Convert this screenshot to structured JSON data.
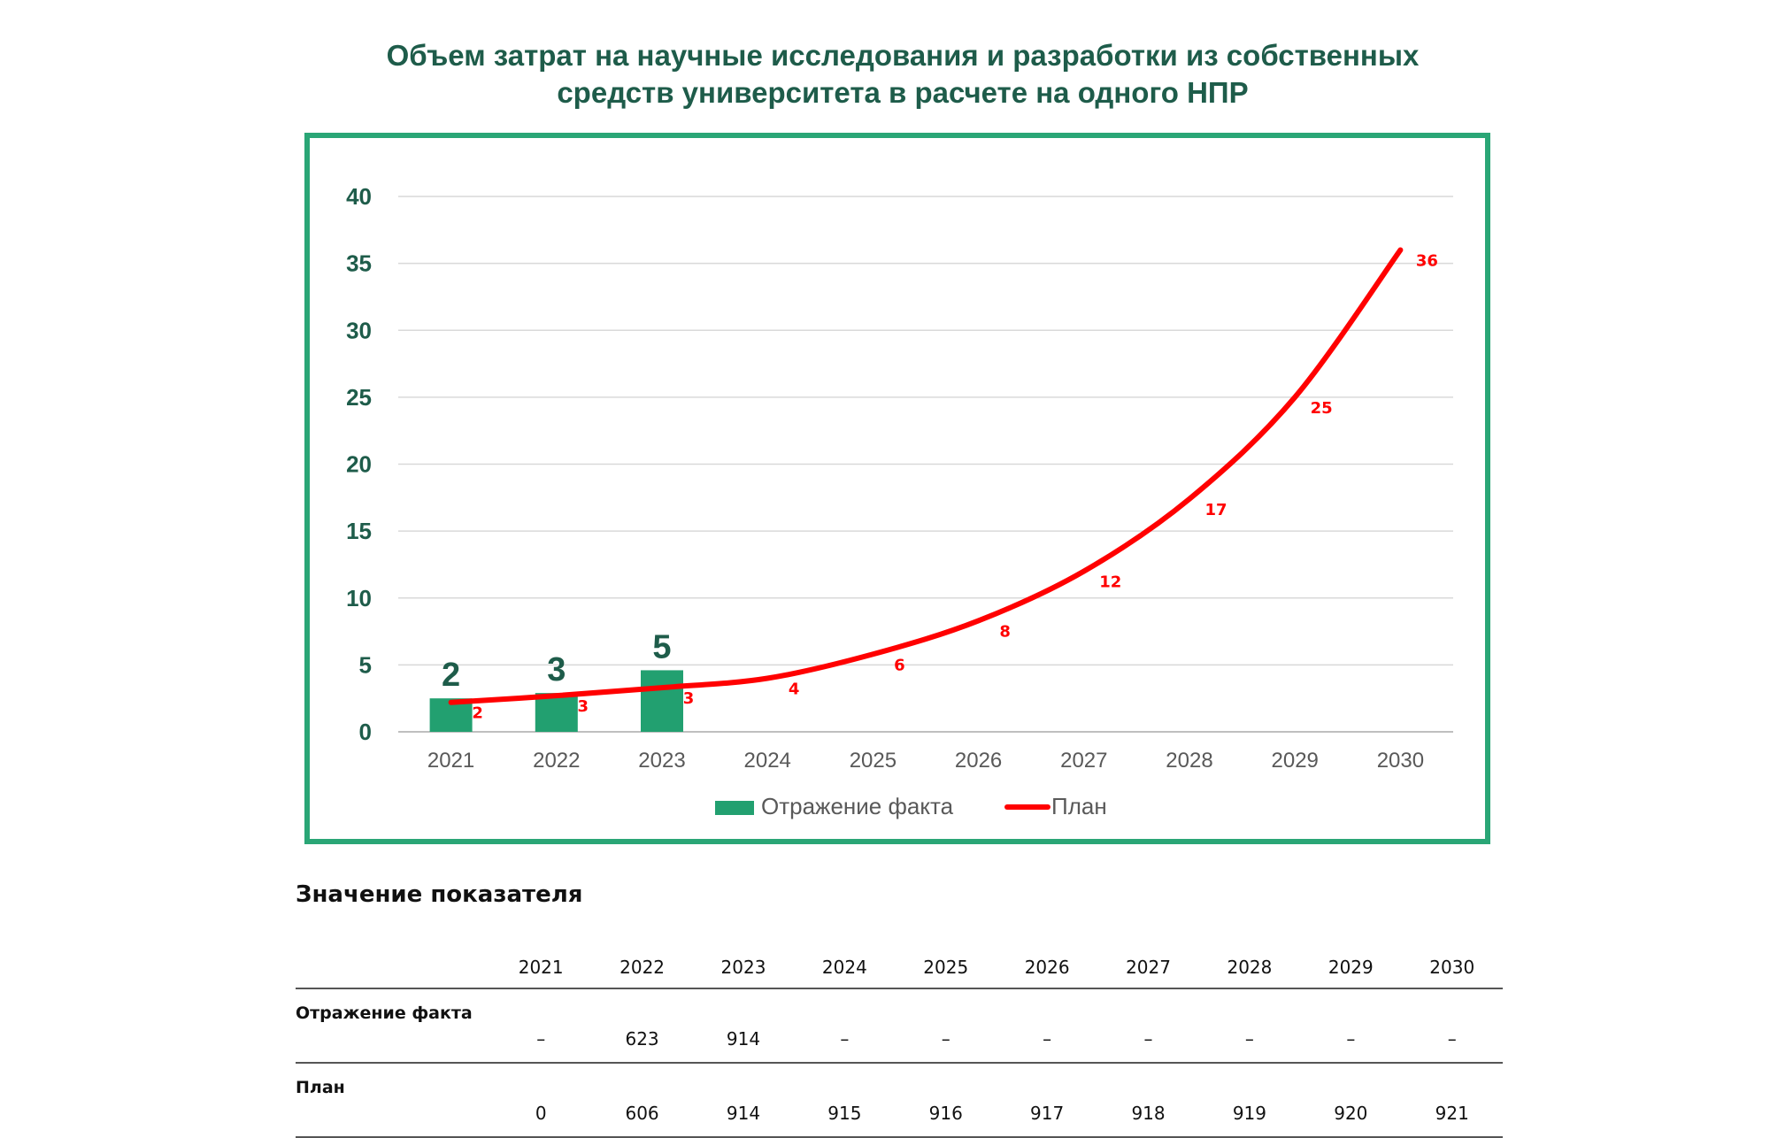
{
  "title_lines": [
    "Объем затрат на научные исследования и разработки из собственных",
    "средств университета в расчете на одного НПР"
  ],
  "chart_data": {
    "type": "bar+line",
    "categories": [
      "2021",
      "2022",
      "2023",
      "2024",
      "2025",
      "2026",
      "2027",
      "2028",
      "2029",
      "2030"
    ],
    "ylim": [
      0,
      40
    ],
    "yticks": [
      0,
      5,
      10,
      15,
      20,
      25,
      30,
      35,
      40
    ],
    "grid": true,
    "legend_position": "bottom",
    "series": [
      {
        "name": "Отражение факта",
        "type": "bar",
        "color": "#22a070",
        "values": [
          2.5,
          2.9,
          4.6,
          null,
          null,
          null,
          null,
          null,
          null,
          null
        ],
        "labels": [
          "2",
          "3",
          "5",
          "",
          "",
          "",
          "",
          "",
          "",
          ""
        ]
      },
      {
        "name": "План",
        "type": "line",
        "color": "#ff0000",
        "values": [
          2.2,
          2.7,
          3.3,
          4,
          5.8,
          8.3,
          12,
          17.4,
          25,
          36
        ],
        "labels": [
          "2",
          "3",
          "3",
          "4",
          "6",
          "8",
          "12",
          "17",
          "25",
          "36"
        ]
      }
    ]
  },
  "table": {
    "title": "Значение показателя",
    "years": [
      "2021",
      "2022",
      "2023",
      "2024",
      "2025",
      "2026",
      "2027",
      "2028",
      "2029",
      "2030"
    ],
    "rows": [
      {
        "label": "Отражение факта",
        "values": [
          "–",
          "623",
          "914",
          "–",
          "–",
          "–",
          "–",
          "–",
          "–",
          "–"
        ]
      },
      {
        "label": "План",
        "values": [
          "0",
          "606",
          "914",
          "915",
          "916",
          "917",
          "918",
          "919",
          "920",
          "921"
        ]
      }
    ]
  }
}
